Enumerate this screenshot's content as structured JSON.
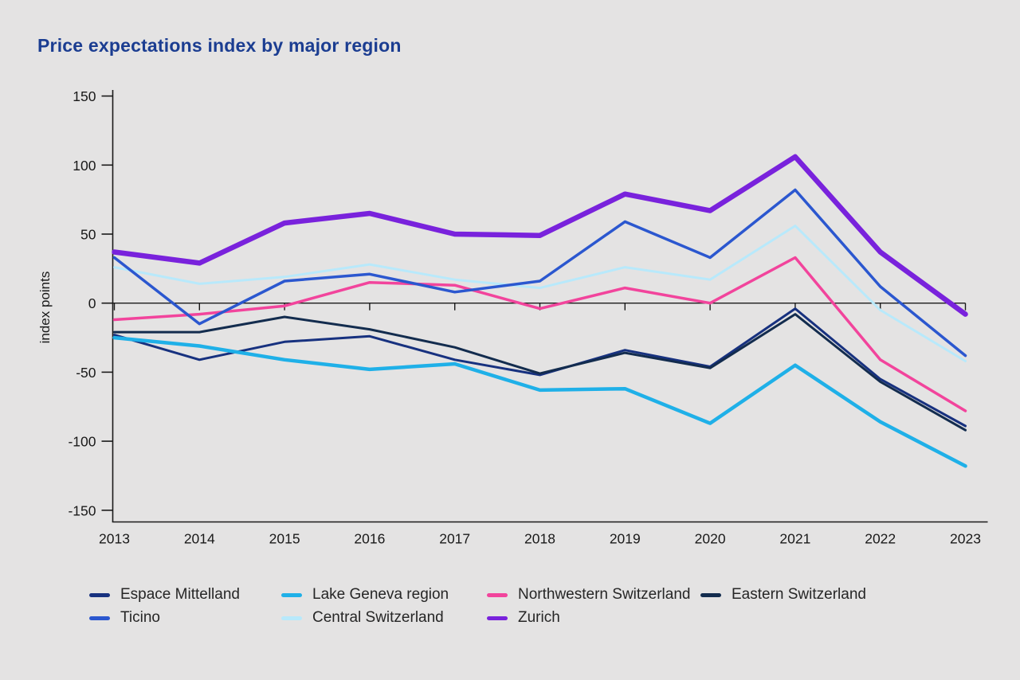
{
  "title": "Price expectations index by major region",
  "colors": {
    "background": "#e4e3e3",
    "title": "#1b3d91",
    "axis": "#1a1a1a",
    "tick_text": "#191919",
    "legend_text": "#262626"
  },
  "y_axis": {
    "label": "index points",
    "tick_labels": [
      "150",
      "100",
      "50",
      "0",
      "-50",
      "-100",
      "-150"
    ]
  },
  "x_axis": {
    "labels": [
      "2013",
      "2014",
      "2015",
      "2016",
      "2017",
      "2018",
      "2019",
      "2020",
      "2021",
      "2022",
      "2023"
    ]
  },
  "chart_data": {
    "type": "line",
    "title": "Price expectations index by major region",
    "xlabel": "",
    "ylabel": "index points",
    "ylim": [
      -150,
      150
    ],
    "ytick_interval": 50,
    "grid": "zero-line-only",
    "legend_position": "bottom",
    "categories": [
      2013,
      2014,
      2015,
      2016,
      2017,
      2018,
      2019,
      2020,
      2021,
      2022,
      2023
    ],
    "series": [
      {
        "name": "Espace Mittelland",
        "color": "#17317f",
        "width": 3,
        "values": [
          -23,
          -41,
          -28,
          -24,
          -41,
          -52,
          -34,
          -46,
          -4,
          -55,
          -89
        ]
      },
      {
        "name": "Eastern Switzerland",
        "color": "#132c4e",
        "width": 3,
        "values": [
          -21,
          -21,
          -10,
          -19,
          -32,
          -51,
          -36,
          -47,
          -8,
          -57,
          -92
        ]
      },
      {
        "name": "Lake Geneva region",
        "color": "#1fb0e8",
        "width": 4.5,
        "values": [
          -25,
          -31,
          -41,
          -48,
          -44,
          -63,
          -62,
          -87,
          -45,
          -86,
          -118
        ]
      },
      {
        "name": "Central Switzerland",
        "color": "#b8e9fb",
        "width": 3,
        "values": [
          26,
          14,
          19,
          28,
          17,
          11,
          26,
          17,
          56,
          -5,
          -42
        ]
      },
      {
        "name": "Northwestern Switzerland",
        "color": "#f2449c",
        "width": 3.5,
        "values": [
          -12,
          -8,
          -2,
          15,
          13,
          -4,
          11,
          0,
          33,
          -41,
          -78
        ]
      },
      {
        "name": "Ticino",
        "color": "#2b57cf",
        "width": 3.5,
        "values": [
          33,
          -15,
          16,
          21,
          8,
          16,
          59,
          33,
          82,
          12,
          -38
        ]
      },
      {
        "name": "Zurich",
        "color": "#7922dc",
        "width": 6.5,
        "values": [
          37,
          29,
          58,
          65,
          50,
          49,
          79,
          67,
          106,
          37,
          -8
        ]
      }
    ]
  },
  "legend": {
    "items": [
      "Espace Mittelland",
      "Lake Geneva region",
      "Northwestern Switzerland",
      "Eastern Switzerland",
      "Ticino",
      "Central Switzerland",
      "Zurich"
    ]
  }
}
